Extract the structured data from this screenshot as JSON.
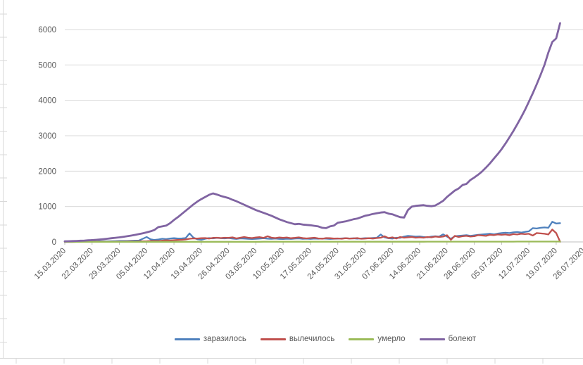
{
  "ui": {
    "background": "#ffffff",
    "grid_color": "#d9d9d9",
    "axis_color": "#bfbfbf",
    "label_color": "#595959",
    "ruler_color": "#d9d9d9"
  },
  "chart_data": {
    "type": "line",
    "title": "",
    "xlabel": "",
    "ylabel": "",
    "grid": "horizontal",
    "legend_position": "bottom",
    "ylim": [
      0,
      6500
    ],
    "y_ticks": [
      0,
      1000,
      2000,
      3000,
      4000,
      5000,
      6000
    ],
    "x_unit": "day",
    "x_start": "15.03.2020",
    "x_end": "20.07.2020",
    "x_tick_labels": [
      "15.03.2020",
      "22.03.2020",
      "29.03.2020",
      "05.04.2020",
      "12.04.2020",
      "19.04.2020",
      "26.04.2020",
      "03.05.2020",
      "10.05.2020",
      "17.05.2020",
      "24.05.2020",
      "31.05.2020",
      "07.06.2020",
      "14.06.2020",
      "21.06.2020",
      "28.06.2020",
      "05.07.2020",
      "12.07.2020",
      "19.07.2020",
      "26.07.2020"
    ],
    "series": [
      {
        "name": "заразилось",
        "color": "#4F81BD",
        "values": [
          6,
          5,
          8,
          7,
          10,
          9,
          12,
          14,
          12,
          16,
          15,
          18,
          20,
          22,
          25,
          28,
          26,
          32,
          35,
          40,
          90,
          140,
          75,
          55,
          70,
          90,
          80,
          95,
          105,
          95,
          100,
          110,
          240,
          120,
          75,
          60,
          90,
          110,
          100,
          115,
          105,
          100,
          110,
          95,
          85,
          100,
          95,
          88,
          82,
          88,
          95,
          105,
          92,
          88,
          96,
          86,
          82,
          90,
          86,
          95,
          100,
          88,
          92,
          86,
          95,
          90,
          98,
          92,
          86,
          90,
          92,
          100,
          108,
          98,
          104,
          94,
          98,
          108,
          104,
          112,
          118,
          210,
          130,
          105,
          95,
          120,
          115,
          150,
          170,
          160,
          150,
          155,
          140,
          130,
          150,
          160,
          150,
          215,
          150,
          90,
          160,
          170,
          180,
          190,
          170,
          185,
          200,
          210,
          220,
          230,
          215,
          235,
          250,
          260,
          250,
          270,
          280,
          265,
          285,
          300,
          390,
          380,
          400,
          410,
          400,
          570,
          520,
          530
        ]
      },
      {
        "name": "вылечилось",
        "color": "#C0504D",
        "values": [
          0,
          1,
          0,
          2,
          1,
          2,
          3,
          2,
          4,
          3,
          5,
          4,
          6,
          8,
          10,
          9,
          12,
          14,
          12,
          16,
          18,
          20,
          25,
          30,
          28,
          35,
          45,
          40,
          50,
          55,
          60,
          70,
          90,
          100,
          95,
          105,
          110,
          95,
          115,
          120,
          110,
          120,
          115,
          130,
          100,
          120,
          140,
          120,
          110,
          125,
          135,
          115,
          160,
          120,
          110,
          125,
          115,
          125,
          105,
          115,
          130,
          110,
          100,
          110,
          120,
          100,
          90,
          110,
          105,
          95,
          100,
          90,
          105,
          95,
          100,
          110,
          90,
          95,
          105,
          95,
          110,
          120,
          160,
          110,
          130,
          95,
          140,
          120,
          130,
          140,
          120,
          130,
          120,
          140,
          130,
          150,
          140,
          150,
          190,
          60,
          170,
          140,
          160,
          170,
          150,
          160,
          190,
          180,
          170,
          200,
          190,
          210,
          200,
          210,
          190,
          220,
          210,
          230,
          220,
          230,
          180,
          250,
          240,
          230,
          210,
          350,
          250,
          5
        ]
      },
      {
        "name": "умерло",
        "color": "#9BBB59",
        "values": [
          0,
          0,
          0,
          0,
          0,
          1,
          1,
          1,
          1,
          1,
          1,
          2,
          2,
          2,
          2,
          2,
          2,
          2,
          2,
          2,
          2,
          2,
          2,
          3,
          3,
          3,
          3,
          3,
          3,
          3,
          3,
          3,
          4,
          4,
          4,
          4,
          4,
          4,
          4,
          4,
          4,
          4,
          4,
          4,
          4,
          4,
          4,
          4,
          4,
          4,
          4,
          5,
          5,
          5,
          5,
          5,
          5,
          5,
          5,
          5,
          5,
          5,
          5,
          5,
          5,
          5,
          5,
          5,
          5,
          5,
          5,
          5,
          5,
          5,
          6,
          6,
          6,
          6,
          6,
          6,
          6,
          6,
          6,
          6,
          6,
          6,
          6,
          6,
          6,
          6,
          6,
          6,
          6,
          7,
          7,
          7,
          7,
          7,
          7,
          7,
          7,
          7,
          7,
          7,
          7,
          7,
          8,
          8,
          8,
          8,
          8,
          8,
          8,
          8,
          8,
          8,
          9,
          9,
          9,
          9,
          9,
          9,
          10,
          10,
          10,
          10,
          10,
          10
        ]
      },
      {
        "name": "болеют",
        "color": "#8064A2",
        "values": [
          16,
          20,
          24,
          28,
          33,
          38,
          45,
          52,
          60,
          70,
          80,
          92,
          105,
          118,
          130,
          145,
          160,
          178,
          198,
          220,
          245,
          270,
          300,
          340,
          420,
          440,
          460,
          530,
          620,
          700,
          790,
          880,
          970,
          1060,
          1140,
          1210,
          1270,
          1330,
          1370,
          1340,
          1300,
          1270,
          1240,
          1190,
          1150,
          1100,
          1050,
          1000,
          950,
          900,
          860,
          820,
          780,
          740,
          690,
          640,
          600,
          560,
          530,
          500,
          510,
          490,
          480,
          470,
          455,
          440,
          400,
          390,
          440,
          460,
          540,
          560,
          580,
          610,
          640,
          660,
          700,
          740,
          760,
          790,
          810,
          830,
          840,
          800,
          780,
          740,
          700,
          690,
          900,
          1000,
          1020,
          1030,
          1040,
          1020,
          1010,
          1030,
          1090,
          1160,
          1270,
          1360,
          1450,
          1510,
          1610,
          1640,
          1750,
          1820,
          1900,
          1990,
          2100,
          2220,
          2350,
          2480,
          2620,
          2780,
          2950,
          3130,
          3320,
          3520,
          3730,
          3960,
          4200,
          4450,
          4720,
          5000,
          5350,
          5650,
          5750,
          6180
        ]
      }
    ]
  },
  "legend": {
    "items": [
      "заразилось",
      "вылечилось",
      "умерло",
      "болеют"
    ]
  }
}
